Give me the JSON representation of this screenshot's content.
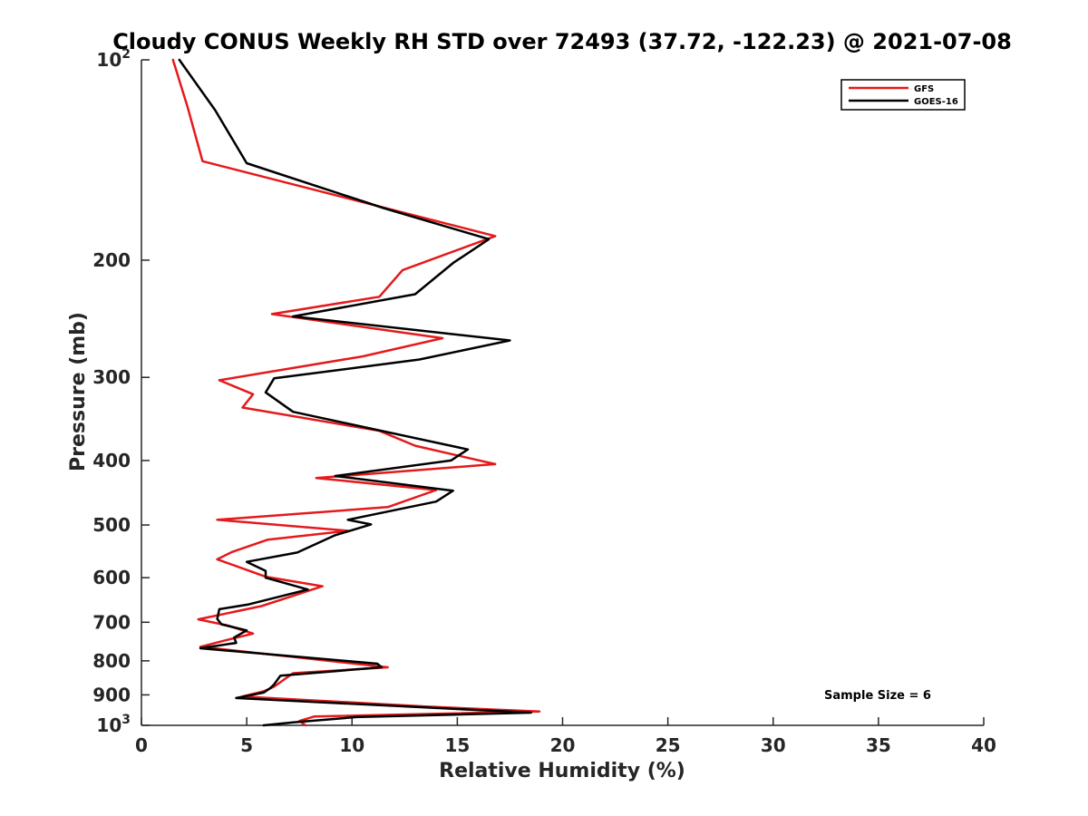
{
  "chart_data": {
    "type": "line",
    "title": "Cloudy CONUS Weekly RH STD over 72493 (37.72, -122.23) @ 2021-07-08",
    "xlabel": "Relative Humidity (%)",
    "ylabel": "Pressure (mb)",
    "xlim": [
      0,
      40
    ],
    "ylim": [
      100,
      1000
    ],
    "y_scale": "log",
    "y_reversed": true,
    "x_ticks": [
      "0",
      "5",
      "10",
      "15",
      "20",
      "25",
      "30",
      "35",
      "40"
    ],
    "y_ticks": [
      {
        "value": 100,
        "base": "10",
        "exp": "2"
      },
      {
        "value": 200,
        "label": "200"
      },
      {
        "value": 300,
        "label": "300"
      },
      {
        "value": 400,
        "label": "400"
      },
      {
        "value": 500,
        "label": "500"
      },
      {
        "value": 600,
        "label": "600"
      },
      {
        "value": 700,
        "label": "700"
      },
      {
        "value": 800,
        "label": "800"
      },
      {
        "value": 900,
        "label": "900"
      },
      {
        "value": 1000,
        "base": "10",
        "exp": "3"
      }
    ],
    "grid": false,
    "legend_position": "top-right",
    "series": [
      {
        "name": "GFS",
        "color": "#e41a1c",
        "points": [
          [
            1.5,
            100
          ],
          [
            2.2,
            118
          ],
          [
            2.9,
            142
          ],
          [
            16.8,
            184
          ],
          [
            12.4,
            207
          ],
          [
            11.3,
            227
          ],
          [
            6.2,
            241
          ],
          [
            14.3,
            262
          ],
          [
            10.5,
            279
          ],
          [
            3.7,
            303
          ],
          [
            5.3,
            318
          ],
          [
            4.8,
            333
          ],
          [
            11.3,
            361
          ],
          [
            13.0,
            380
          ],
          [
            16.8,
            405
          ],
          [
            8.3,
            425
          ],
          [
            14.0,
            443
          ],
          [
            11.7,
            470
          ],
          [
            3.6,
            491
          ],
          [
            9.8,
            510
          ],
          [
            6.0,
            526
          ],
          [
            4.3,
            549
          ],
          [
            3.6,
            563
          ],
          [
            5.9,
            598
          ],
          [
            8.6,
            618
          ],
          [
            5.7,
            662
          ],
          [
            2.7,
            693
          ],
          [
            4.1,
            708
          ],
          [
            5.3,
            728
          ],
          [
            4.0,
            745
          ],
          [
            2.8,
            762
          ],
          [
            11.7,
            818
          ],
          [
            7.2,
            835
          ],
          [
            6.3,
            875
          ],
          [
            5.8,
            889
          ],
          [
            4.8,
            905
          ],
          [
            13.5,
            937
          ],
          [
            18.9,
            953
          ],
          [
            8.2,
            970
          ],
          [
            7.5,
            985
          ],
          [
            7.8,
            1000
          ]
        ]
      },
      {
        "name": "GOES-16",
        "color": "#000000",
        "points": [
          [
            1.8,
            100
          ],
          [
            3.5,
            119
          ],
          [
            5.0,
            143
          ],
          [
            11.5,
            167
          ],
          [
            16.5,
            186
          ],
          [
            14.8,
            202
          ],
          [
            13.0,
            225
          ],
          [
            7.2,
            243
          ],
          [
            17.5,
            264
          ],
          [
            13.2,
            282
          ],
          [
            6.3,
            301
          ],
          [
            5.9,
            316
          ],
          [
            7.2,
            338
          ],
          [
            15.5,
            385
          ],
          [
            14.7,
            400
          ],
          [
            9.2,
            422
          ],
          [
            14.8,
            444
          ],
          [
            14.0,
            461
          ],
          [
            9.8,
            491
          ],
          [
            10.9,
            499
          ],
          [
            9.2,
            518
          ],
          [
            7.4,
            550
          ],
          [
            5.0,
            568
          ],
          [
            5.9,
            586
          ],
          [
            5.9,
            600
          ],
          [
            7.9,
            625
          ],
          [
            5.1,
            658
          ],
          [
            3.7,
            669
          ],
          [
            3.6,
            692
          ],
          [
            3.8,
            705
          ],
          [
            5.0,
            720
          ],
          [
            4.4,
            738
          ],
          [
            4.5,
            752
          ],
          [
            2.8,
            766
          ],
          [
            11.2,
            808
          ],
          [
            11.4,
            818
          ],
          [
            6.6,
            842
          ],
          [
            6.3,
            868
          ],
          [
            6.1,
            880
          ],
          [
            5.8,
            893
          ],
          [
            4.5,
            910
          ],
          [
            13.5,
            940
          ],
          [
            18.5,
            957
          ],
          [
            10.2,
            972
          ],
          [
            7.2,
            990
          ],
          [
            5.8,
            1000
          ]
        ]
      }
    ],
    "legend": [
      {
        "name": "GFS",
        "color": "#e41a1c"
      },
      {
        "name": "GOES-16",
        "color": "#000000"
      }
    ],
    "annotation": "Sample Size = 6"
  }
}
